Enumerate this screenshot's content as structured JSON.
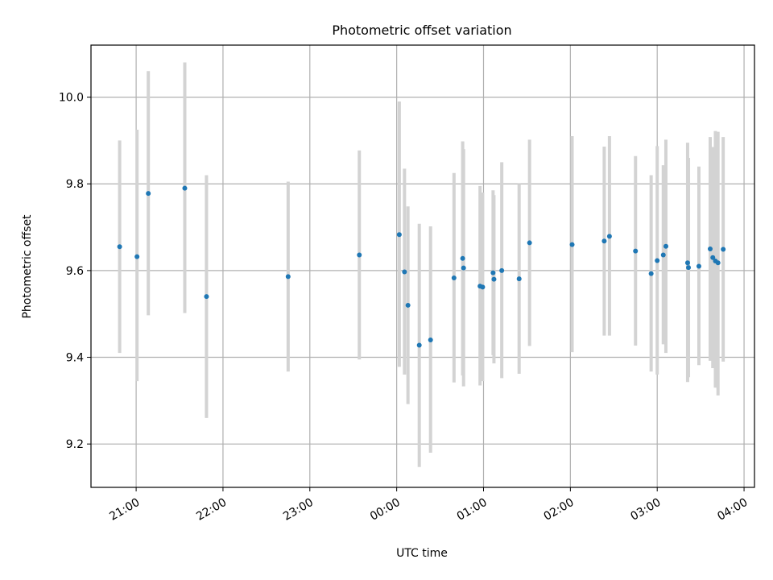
{
  "chart_data": {
    "type": "scatter",
    "title": "Photometric offset variation",
    "xlabel": "UTC time",
    "ylabel": "Photometric offset",
    "grid": true,
    "x_unit": "hours",
    "xlim": [
      -3.52,
      4.12
    ],
    "ylim": [
      9.1,
      10.12
    ],
    "xticks": [
      {
        "value": -3,
        "label": "21:00"
      },
      {
        "value": -2,
        "label": "22:00"
      },
      {
        "value": -1,
        "label": "23:00"
      },
      {
        "value": 0,
        "label": "00:00"
      },
      {
        "value": 1,
        "label": "01:00"
      },
      {
        "value": 2,
        "label": "02:00"
      },
      {
        "value": 3,
        "label": "03:00"
      },
      {
        "value": 4,
        "label": "04:00"
      }
    ],
    "yticks": [
      {
        "value": 9.2,
        "label": "9.2"
      },
      {
        "value": 9.4,
        "label": "9.4"
      },
      {
        "value": 9.6,
        "label": "9.6"
      },
      {
        "value": 9.8,
        "label": "9.8"
      },
      {
        "value": 10.0,
        "label": "10.0"
      }
    ],
    "points": [
      {
        "x": -3.19,
        "y": 9.655,
        "lo": 9.41,
        "hi": 9.9
      },
      {
        "x": -2.99,
        "y": 9.632,
        "lo": 9.345,
        "hi": 9.925
      },
      {
        "x": -2.86,
        "y": 9.778,
        "lo": 9.497,
        "hi": 10.06
      },
      {
        "x": -2.44,
        "y": 9.79,
        "lo": 9.502,
        "hi": 10.08
      },
      {
        "x": -2.19,
        "y": 9.54,
        "lo": 9.26,
        "hi": 9.82
      },
      {
        "x": -1.25,
        "y": 9.586,
        "lo": 9.367,
        "hi": 9.805
      },
      {
        "x": -0.43,
        "y": 9.636,
        "lo": 9.395,
        "hi": 9.877
      },
      {
        "x": 0.03,
        "y": 9.683,
        "lo": 9.378,
        "hi": 9.99
      },
      {
        "x": 0.09,
        "y": 9.597,
        "lo": 9.36,
        "hi": 9.835
      },
      {
        "x": 0.13,
        "y": 9.52,
        "lo": 9.292,
        "hi": 9.748
      },
      {
        "x": 0.26,
        "y": 9.428,
        "lo": 9.147,
        "hi": 9.708
      },
      {
        "x": 0.39,
        "y": 9.44,
        "lo": 9.18,
        "hi": 9.702
      },
      {
        "x": 0.66,
        "y": 9.583,
        "lo": 9.342,
        "hi": 9.825
      },
      {
        "x": 0.76,
        "y": 9.628,
        "lo": 9.358,
        "hi": 9.898
      },
      {
        "x": 0.77,
        "y": 9.606,
        "lo": 9.333,
        "hi": 9.88
      },
      {
        "x": 0.96,
        "y": 9.564,
        "lo": 9.335,
        "hi": 9.795
      },
      {
        "x": 0.99,
        "y": 9.562,
        "lo": 9.345,
        "hi": 9.78
      },
      {
        "x": 1.11,
        "y": 9.595,
        "lo": 9.405,
        "hi": 9.785
      },
      {
        "x": 1.12,
        "y": 9.58,
        "lo": 9.386,
        "hi": 9.774
      },
      {
        "x": 1.21,
        "y": 9.6,
        "lo": 9.352,
        "hi": 9.85
      },
      {
        "x": 1.41,
        "y": 9.581,
        "lo": 9.362,
        "hi": 9.8
      },
      {
        "x": 1.53,
        "y": 9.664,
        "lo": 9.426,
        "hi": 9.902
      },
      {
        "x": 2.02,
        "y": 9.66,
        "lo": 9.412,
        "hi": 9.91
      },
      {
        "x": 2.39,
        "y": 9.668,
        "lo": 9.45,
        "hi": 9.886
      },
      {
        "x": 2.45,
        "y": 9.679,
        "lo": 9.45,
        "hi": 9.91
      },
      {
        "x": 2.75,
        "y": 9.645,
        "lo": 9.427,
        "hi": 9.864
      },
      {
        "x": 2.93,
        "y": 9.593,
        "lo": 9.367,
        "hi": 9.82
      },
      {
        "x": 3.0,
        "y": 9.623,
        "lo": 9.36,
        "hi": 9.887
      },
      {
        "x": 3.07,
        "y": 9.636,
        "lo": 9.43,
        "hi": 9.843
      },
      {
        "x": 3.1,
        "y": 9.656,
        "lo": 9.41,
        "hi": 9.902
      },
      {
        "x": 3.35,
        "y": 9.618,
        "lo": 9.343,
        "hi": 9.895
      },
      {
        "x": 3.36,
        "y": 9.607,
        "lo": 9.354,
        "hi": 9.86
      },
      {
        "x": 3.48,
        "y": 9.61,
        "lo": 9.382,
        "hi": 9.84
      },
      {
        "x": 3.61,
        "y": 9.65,
        "lo": 9.392,
        "hi": 9.908
      },
      {
        "x": 3.64,
        "y": 9.63,
        "lo": 9.375,
        "hi": 9.885
      },
      {
        "x": 3.67,
        "y": 9.622,
        "lo": 9.33,
        "hi": 9.922
      },
      {
        "x": 3.7,
        "y": 9.618,
        "lo": 9.312,
        "hi": 9.92
      },
      {
        "x": 3.76,
        "y": 9.649,
        "lo": 9.39,
        "hi": 9.908
      }
    ],
    "colors": {
      "point": "#1f77b4",
      "errorbar": "#d3d3d3",
      "grid": "#b0b0b0"
    }
  }
}
